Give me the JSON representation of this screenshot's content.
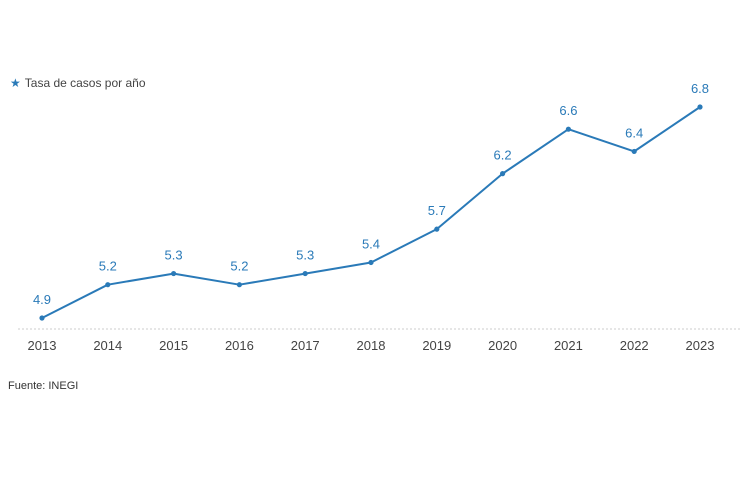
{
  "legend": {
    "icon": "star-icon",
    "label": "Tasa de casos por año"
  },
  "source": "Fuente: INEGI",
  "colors": {
    "series": "#2a7ab8",
    "axis": "#cccccc"
  },
  "chart_data": {
    "type": "line",
    "x": [
      "2013",
      "2014",
      "2015",
      "2016",
      "2017",
      "2018",
      "2019",
      "2020",
      "2021",
      "2022",
      "2023"
    ],
    "series": [
      {
        "name": "Tasa de casos por año",
        "values": [
          4.9,
          5.2,
          5.3,
          5.2,
          5.3,
          5.4,
          5.7,
          6.2,
          6.6,
          6.4,
          6.8
        ]
      }
    ],
    "data_labels": [
      "4.9",
      "5.2",
      "5.3",
      "5.2",
      "5.3",
      "5.4",
      "5.7",
      "6.2",
      "6.6",
      "6.4",
      "6.8"
    ],
    "grid": false,
    "legend_position": "top-left"
  }
}
